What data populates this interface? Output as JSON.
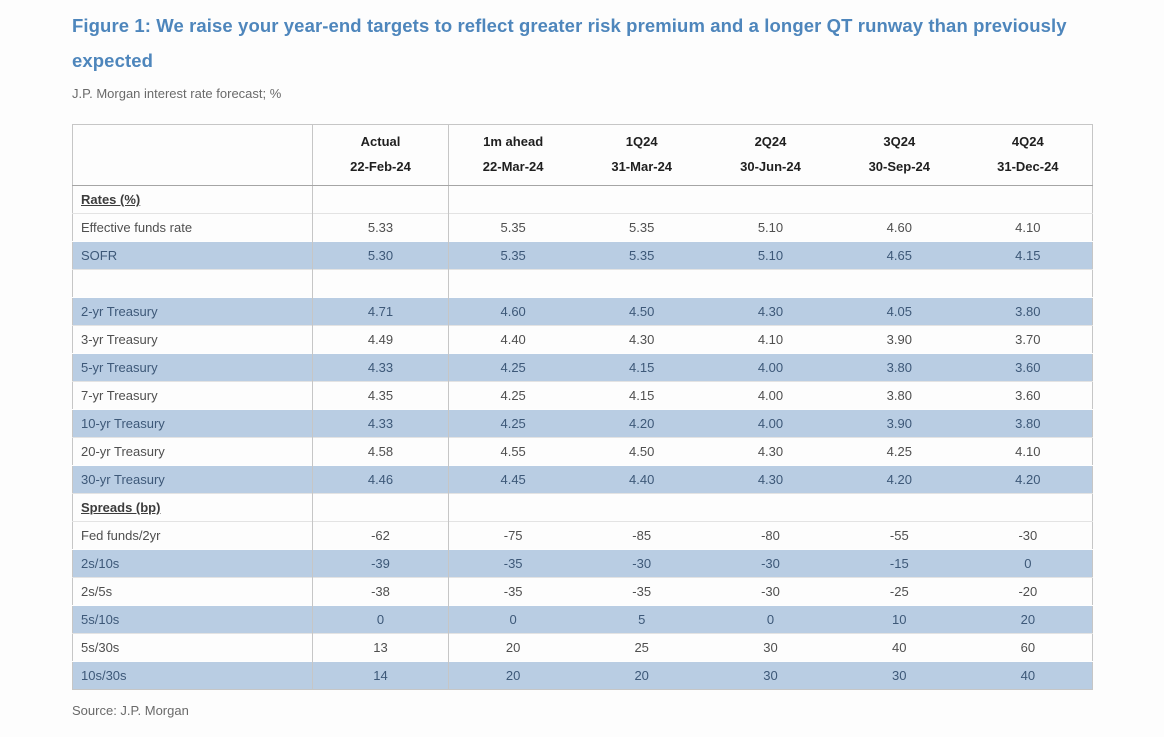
{
  "figure": {
    "title": "Figure 1: We raise your year-end targets to reflect greater risk premium and a longer QT runway than previously expected",
    "subtitle": "J.P. Morgan interest rate forecast; %",
    "source": "Source: J.P. Morgan"
  },
  "colors": {
    "title_blue": "#4e86bc",
    "row_highlight": "#b9cde3",
    "text_body": "#4f4f4f",
    "text_shaded": "#3d5878",
    "text_muted": "#6a6a6a"
  },
  "table": {
    "columns": [
      {
        "label": "",
        "sublabel": ""
      },
      {
        "label": "Actual",
        "sublabel": "22-Feb-24"
      },
      {
        "label": "1m ahead",
        "sublabel": "22-Mar-24"
      },
      {
        "label": "1Q24",
        "sublabel": "31-Mar-24"
      },
      {
        "label": "2Q24",
        "sublabel": "30-Jun-24"
      },
      {
        "label": "3Q24",
        "sublabel": "30-Sep-24"
      },
      {
        "label": "4Q24",
        "sublabel": "31-Dec-24"
      }
    ],
    "rows": [
      {
        "type": "section",
        "label": "Rates (%)",
        "values": [
          "",
          "",
          "",
          "",
          "",
          ""
        ],
        "shaded": false
      },
      {
        "type": "data",
        "label": "Effective funds rate",
        "values": [
          "5.33",
          "5.35",
          "5.35",
          "5.10",
          "4.60",
          "4.10"
        ],
        "shaded": false
      },
      {
        "type": "data",
        "label": "SOFR",
        "values": [
          "5.30",
          "5.35",
          "5.35",
          "5.10",
          "4.65",
          "4.15"
        ],
        "shaded": true
      },
      {
        "type": "blank",
        "label": "",
        "values": [
          "",
          "",
          "",
          "",
          "",
          ""
        ],
        "shaded": false
      },
      {
        "type": "data",
        "label": "2-yr Treasury",
        "values": [
          "4.71",
          "4.60",
          "4.50",
          "4.30",
          "4.05",
          "3.80"
        ],
        "shaded": true
      },
      {
        "type": "data",
        "label": "3-yr Treasury",
        "values": [
          "4.49",
          "4.40",
          "4.30",
          "4.10",
          "3.90",
          "3.70"
        ],
        "shaded": false
      },
      {
        "type": "data",
        "label": "5-yr Treasury",
        "values": [
          "4.33",
          "4.25",
          "4.15",
          "4.00",
          "3.80",
          "3.60"
        ],
        "shaded": true
      },
      {
        "type": "data",
        "label": "7-yr Treasury",
        "values": [
          "4.35",
          "4.25",
          "4.15",
          "4.00",
          "3.80",
          "3.60"
        ],
        "shaded": false
      },
      {
        "type": "data",
        "label": "10-yr Treasury",
        "values": [
          "4.33",
          "4.25",
          "4.20",
          "4.00",
          "3.90",
          "3.80"
        ],
        "shaded": true
      },
      {
        "type": "data",
        "label": "20-yr Treasury",
        "values": [
          "4.58",
          "4.55",
          "4.50",
          "4.30",
          "4.25",
          "4.10"
        ],
        "shaded": false
      },
      {
        "type": "data",
        "label": "30-yr Treasury",
        "values": [
          "4.46",
          "4.45",
          "4.40",
          "4.30",
          "4.20",
          "4.20"
        ],
        "shaded": true
      },
      {
        "type": "section",
        "label": "Spreads (bp)",
        "values": [
          "",
          "",
          "",
          "",
          "",
          ""
        ],
        "shaded": false
      },
      {
        "type": "data",
        "label": "Fed funds/2yr",
        "values": [
          "-62",
          "-75",
          "-85",
          "-80",
          "-55",
          "-30"
        ],
        "shaded": false
      },
      {
        "type": "data",
        "label": "2s/10s",
        "values": [
          "-39",
          "-35",
          "-30",
          "-30",
          "-15",
          "0"
        ],
        "shaded": true
      },
      {
        "type": "data",
        "label": "2s/5s",
        "values": [
          "-38",
          "-35",
          "-35",
          "-30",
          "-25",
          "-20"
        ],
        "shaded": false
      },
      {
        "type": "data",
        "label": "5s/10s",
        "values": [
          "0",
          "0",
          "5",
          "0",
          "10",
          "20"
        ],
        "shaded": true
      },
      {
        "type": "data",
        "label": "5s/30s",
        "values": [
          "13",
          "20",
          "25",
          "30",
          "40",
          "60"
        ],
        "shaded": false
      },
      {
        "type": "data",
        "label": "10s/30s",
        "values": [
          "14",
          "20",
          "20",
          "30",
          "30",
          "40"
        ],
        "shaded": true
      }
    ]
  }
}
